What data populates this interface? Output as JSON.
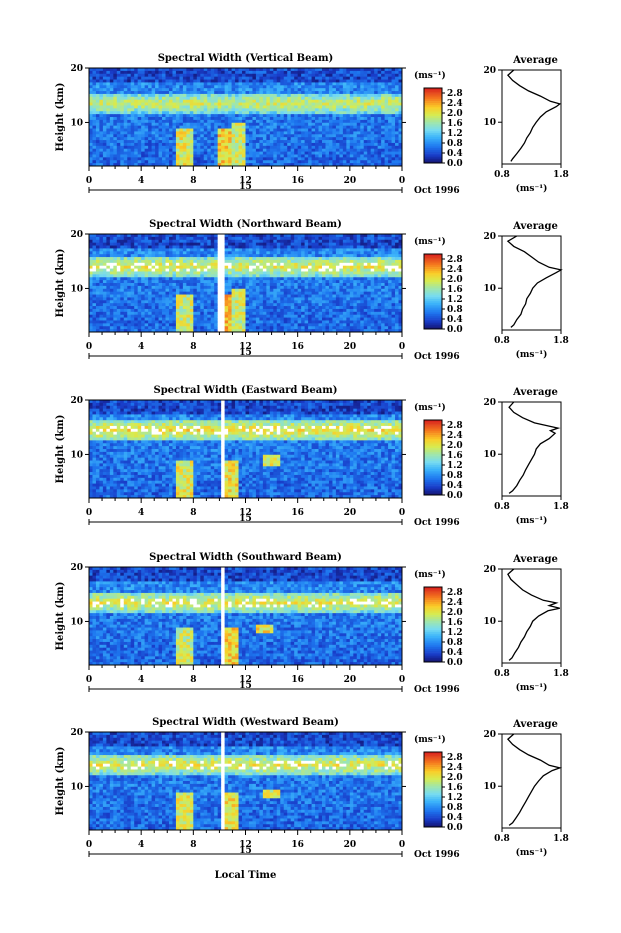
{
  "shared": {
    "xlabel": "Local Time",
    "ylabel": "Height (km)",
    "date_label": "Oct 1996",
    "day_label": "15",
    "unit_label": "(ms⁻¹)",
    "avg_title": "Average"
  },
  "chart_data": [
    {
      "type": "heatmap",
      "title": "Spectral Width (Vertical Beam)",
      "x_ticks": [
        "0",
        "4",
        "8",
        "12",
        "16",
        "20",
        "0"
      ],
      "xlim": [
        0,
        24
      ],
      "y_ticks": [
        "20",
        "10"
      ],
      "ylim": [
        2,
        20
      ],
      "colorbar_ticks": [
        "2.8",
        "2.4",
        "2.0",
        "1.6",
        "1.2",
        "0.8",
        "0.4",
        "0.0"
      ],
      "colorbar_range": [
        0.0,
        3.0
      ],
      "gaps": [],
      "features": [
        {
          "t": 7.3,
          "h0": 2,
          "h1": 9,
          "v": 2.3
        },
        {
          "t": 10.6,
          "h0": 2,
          "h1": 9,
          "v": 2.5
        },
        {
          "t": 11.5,
          "h0": 2,
          "h1": 10,
          "v": 2.2
        }
      ],
      "band": {
        "h": 13.5,
        "v": 1.9
      },
      "avg": {
        "x_ticks": [
          "0.8",
          "1.8"
        ],
        "xlim": [
          0.8,
          1.8
        ],
        "ylim": [
          2,
          20
        ],
        "profile": [
          [
            2.5,
            0.95
          ],
          [
            3,
            0.98
          ],
          [
            4,
            1.05
          ],
          [
            5,
            1.12
          ],
          [
            6,
            1.18
          ],
          [
            7,
            1.22
          ],
          [
            8,
            1.28
          ],
          [
            9,
            1.32
          ],
          [
            10,
            1.38
          ],
          [
            11,
            1.45
          ],
          [
            12,
            1.55
          ],
          [
            13,
            1.72
          ],
          [
            13.5,
            1.78
          ],
          [
            14,
            1.62
          ],
          [
            15,
            1.45
          ],
          [
            16,
            1.25
          ],
          [
            17,
            1.1
          ],
          [
            18,
            0.98
          ],
          [
            19,
            0.9
          ],
          [
            20,
            1.0
          ]
        ]
      }
    },
    {
      "type": "heatmap",
      "title": "Spectral Width (Northward Beam)",
      "x_ticks": [
        "0",
        "4",
        "8",
        "12",
        "16",
        "20",
        "0"
      ],
      "xlim": [
        0,
        24
      ],
      "y_ticks": [
        "20",
        "10"
      ],
      "ylim": [
        2,
        20
      ],
      "colorbar_ticks": [
        "2.8",
        "2.4",
        "2.0",
        "1.6",
        "1.2",
        "0.8",
        "0.4",
        "0.0"
      ],
      "colorbar_range": [
        0.0,
        3.0
      ],
      "gaps": [
        [
          10.0,
          10.4
        ],
        [
          11.9,
          12.1
        ]
      ],
      "features": [
        {
          "t": 7.3,
          "h0": 2,
          "h1": 9,
          "v": 2.2
        },
        {
          "t": 10.8,
          "h0": 2,
          "h1": 9,
          "v": 2.6
        },
        {
          "t": 11.5,
          "h0": 2,
          "h1": 10,
          "v": 2.2
        }
      ],
      "band": {
        "h": 14.0,
        "v": 2.0
      },
      "avg": {
        "x_ticks": [
          "0.8",
          "1.8"
        ],
        "xlim": [
          0.8,
          1.8
        ],
        "ylim": [
          2,
          20
        ],
        "profile": [
          [
            2.5,
            0.95
          ],
          [
            3,
            1.0
          ],
          [
            4,
            1.05
          ],
          [
            5,
            1.12
          ],
          [
            6,
            1.15
          ],
          [
            7,
            1.2
          ],
          [
            8,
            1.22
          ],
          [
            9,
            1.28
          ],
          [
            10,
            1.32
          ],
          [
            11,
            1.4
          ],
          [
            12,
            1.55
          ],
          [
            13,
            1.72
          ],
          [
            13.5,
            1.8
          ],
          [
            14,
            1.6
          ],
          [
            15,
            1.42
          ],
          [
            16,
            1.3
          ],
          [
            17,
            1.18
          ],
          [
            18,
            1.0
          ],
          [
            19,
            0.9
          ],
          [
            20,
            1.05
          ]
        ]
      }
    },
    {
      "type": "heatmap",
      "title": "Spectral Width (Eastward Beam)",
      "x_ticks": [
        "0",
        "4",
        "8",
        "12",
        "16",
        "20",
        "0"
      ],
      "xlim": [
        0,
        24
      ],
      "y_ticks": [
        "20",
        "10"
      ],
      "ylim": [
        2,
        20
      ],
      "colorbar_ticks": [
        "2.8",
        "2.4",
        "2.0",
        "1.6",
        "1.2",
        "0.8",
        "0.4",
        "0.0"
      ],
      "colorbar_range": [
        0.0,
        3.0
      ],
      "gaps": [
        [
          10.1,
          10.5
        ],
        [
          11.9,
          12.1
        ]
      ],
      "features": [
        {
          "t": 7.3,
          "h0": 2,
          "h1": 9,
          "v": 2.3
        },
        {
          "t": 10.8,
          "h0": 2,
          "h1": 9,
          "v": 2.4
        },
        {
          "t": 14.0,
          "h0": 8,
          "h1": 10,
          "v": 2.3
        }
      ],
      "band": {
        "h": 14.5,
        "v": 2.1
      },
      "avg": {
        "x_ticks": [
          "0.8",
          "1.8"
        ],
        "xlim": [
          0.8,
          1.8
        ],
        "ylim": [
          2,
          20
        ],
        "profile": [
          [
            2.5,
            0.92
          ],
          [
            3,
            0.98
          ],
          [
            4,
            1.05
          ],
          [
            5,
            1.1
          ],
          [
            6,
            1.16
          ],
          [
            7,
            1.2
          ],
          [
            8,
            1.25
          ],
          [
            9,
            1.3
          ],
          [
            10,
            1.35
          ],
          [
            11,
            1.38
          ],
          [
            12,
            1.45
          ],
          [
            13,
            1.6
          ],
          [
            14,
            1.7
          ],
          [
            14.5,
            1.62
          ],
          [
            15,
            1.75
          ],
          [
            15.5,
            1.55
          ],
          [
            16,
            1.35
          ],
          [
            17,
            1.15
          ],
          [
            18,
            1.0
          ],
          [
            19,
            0.92
          ],
          [
            20,
            1.0
          ]
        ]
      }
    },
    {
      "type": "heatmap",
      "title": "Spectral Width (Southward Beam)",
      "x_ticks": [
        "0",
        "4",
        "8",
        "12",
        "16",
        "20",
        "0"
      ],
      "xlim": [
        0,
        24
      ],
      "y_ticks": [
        "20",
        "10"
      ],
      "ylim": [
        2,
        20
      ],
      "colorbar_ticks": [
        "2.8",
        "2.4",
        "2.0",
        "1.6",
        "1.2",
        "0.8",
        "0.4",
        "0.0"
      ],
      "colorbar_range": [
        0.0,
        3.0
      ],
      "gaps": [
        [
          10.2,
          10.5
        ],
        [
          11.9,
          12.1
        ]
      ],
      "features": [
        {
          "t": 7.3,
          "h0": 2,
          "h1": 9,
          "v": 2.2
        },
        {
          "t": 10.8,
          "h0": 2,
          "h1": 9,
          "v": 2.5
        },
        {
          "t": 13.5,
          "h0": 8,
          "h1": 9.5,
          "v": 2.4
        }
      ],
      "band": {
        "h": 13.5,
        "v": 2.0
      },
      "avg": {
        "x_ticks": [
          "0.8",
          "1.8"
        ],
        "xlim": [
          0.8,
          1.8
        ],
        "ylim": [
          2,
          20
        ],
        "profile": [
          [
            2.5,
            0.92
          ],
          [
            3,
            0.97
          ],
          [
            4,
            1.02
          ],
          [
            5,
            1.08
          ],
          [
            6,
            1.12
          ],
          [
            7,
            1.18
          ],
          [
            8,
            1.22
          ],
          [
            9,
            1.28
          ],
          [
            10,
            1.32
          ],
          [
            11,
            1.42
          ],
          [
            12,
            1.58
          ],
          [
            12.5,
            1.78
          ],
          [
            13,
            1.6
          ],
          [
            13.5,
            1.72
          ],
          [
            14,
            1.5
          ],
          [
            15,
            1.3
          ],
          [
            16,
            1.15
          ],
          [
            17,
            1.05
          ],
          [
            18,
            0.95
          ],
          [
            19,
            0.9
          ],
          [
            20,
            1.0
          ]
        ]
      }
    },
    {
      "type": "heatmap",
      "title": "Spectral Width (Westward Beam)",
      "x_ticks": [
        "0",
        "4",
        "8",
        "12",
        "16",
        "20",
        "0"
      ],
      "xlim": [
        0,
        24
      ],
      "y_ticks": [
        "20",
        "10"
      ],
      "ylim": [
        2,
        20
      ],
      "colorbar_ticks": [
        "2.8",
        "2.4",
        "2.0",
        "1.6",
        "1.2",
        "0.8",
        "0.4",
        "0.0"
      ],
      "colorbar_range": [
        0.0,
        3.0
      ],
      "gaps": [
        [
          10.1,
          10.4
        ],
        [
          11.9,
          12.1
        ]
      ],
      "features": [
        {
          "t": 7.3,
          "h0": 2,
          "h1": 9,
          "v": 2.3
        },
        {
          "t": 10.8,
          "h0": 2,
          "h1": 9,
          "v": 2.4
        },
        {
          "t": 14.0,
          "h0": 8,
          "h1": 9.5,
          "v": 2.2
        }
      ],
      "band": {
        "h": 14.0,
        "v": 2.0
      },
      "avg": {
        "x_ticks": [
          "0.8",
          "1.8"
        ],
        "xlim": [
          0.8,
          1.8
        ],
        "ylim": [
          2,
          20
        ],
        "profile": [
          [
            2.5,
            0.92
          ],
          [
            3,
            0.98
          ],
          [
            4,
            1.04
          ],
          [
            5,
            1.1
          ],
          [
            6,
            1.15
          ],
          [
            7,
            1.2
          ],
          [
            8,
            1.25
          ],
          [
            9,
            1.3
          ],
          [
            10,
            1.35
          ],
          [
            11,
            1.42
          ],
          [
            12,
            1.5
          ],
          [
            13,
            1.65
          ],
          [
            13.5,
            1.78
          ],
          [
            14,
            1.6
          ],
          [
            15,
            1.45
          ],
          [
            16,
            1.25
          ],
          [
            17,
            1.1
          ],
          [
            18,
            0.98
          ],
          [
            19,
            0.9
          ],
          [
            20,
            1.0
          ]
        ]
      }
    }
  ]
}
